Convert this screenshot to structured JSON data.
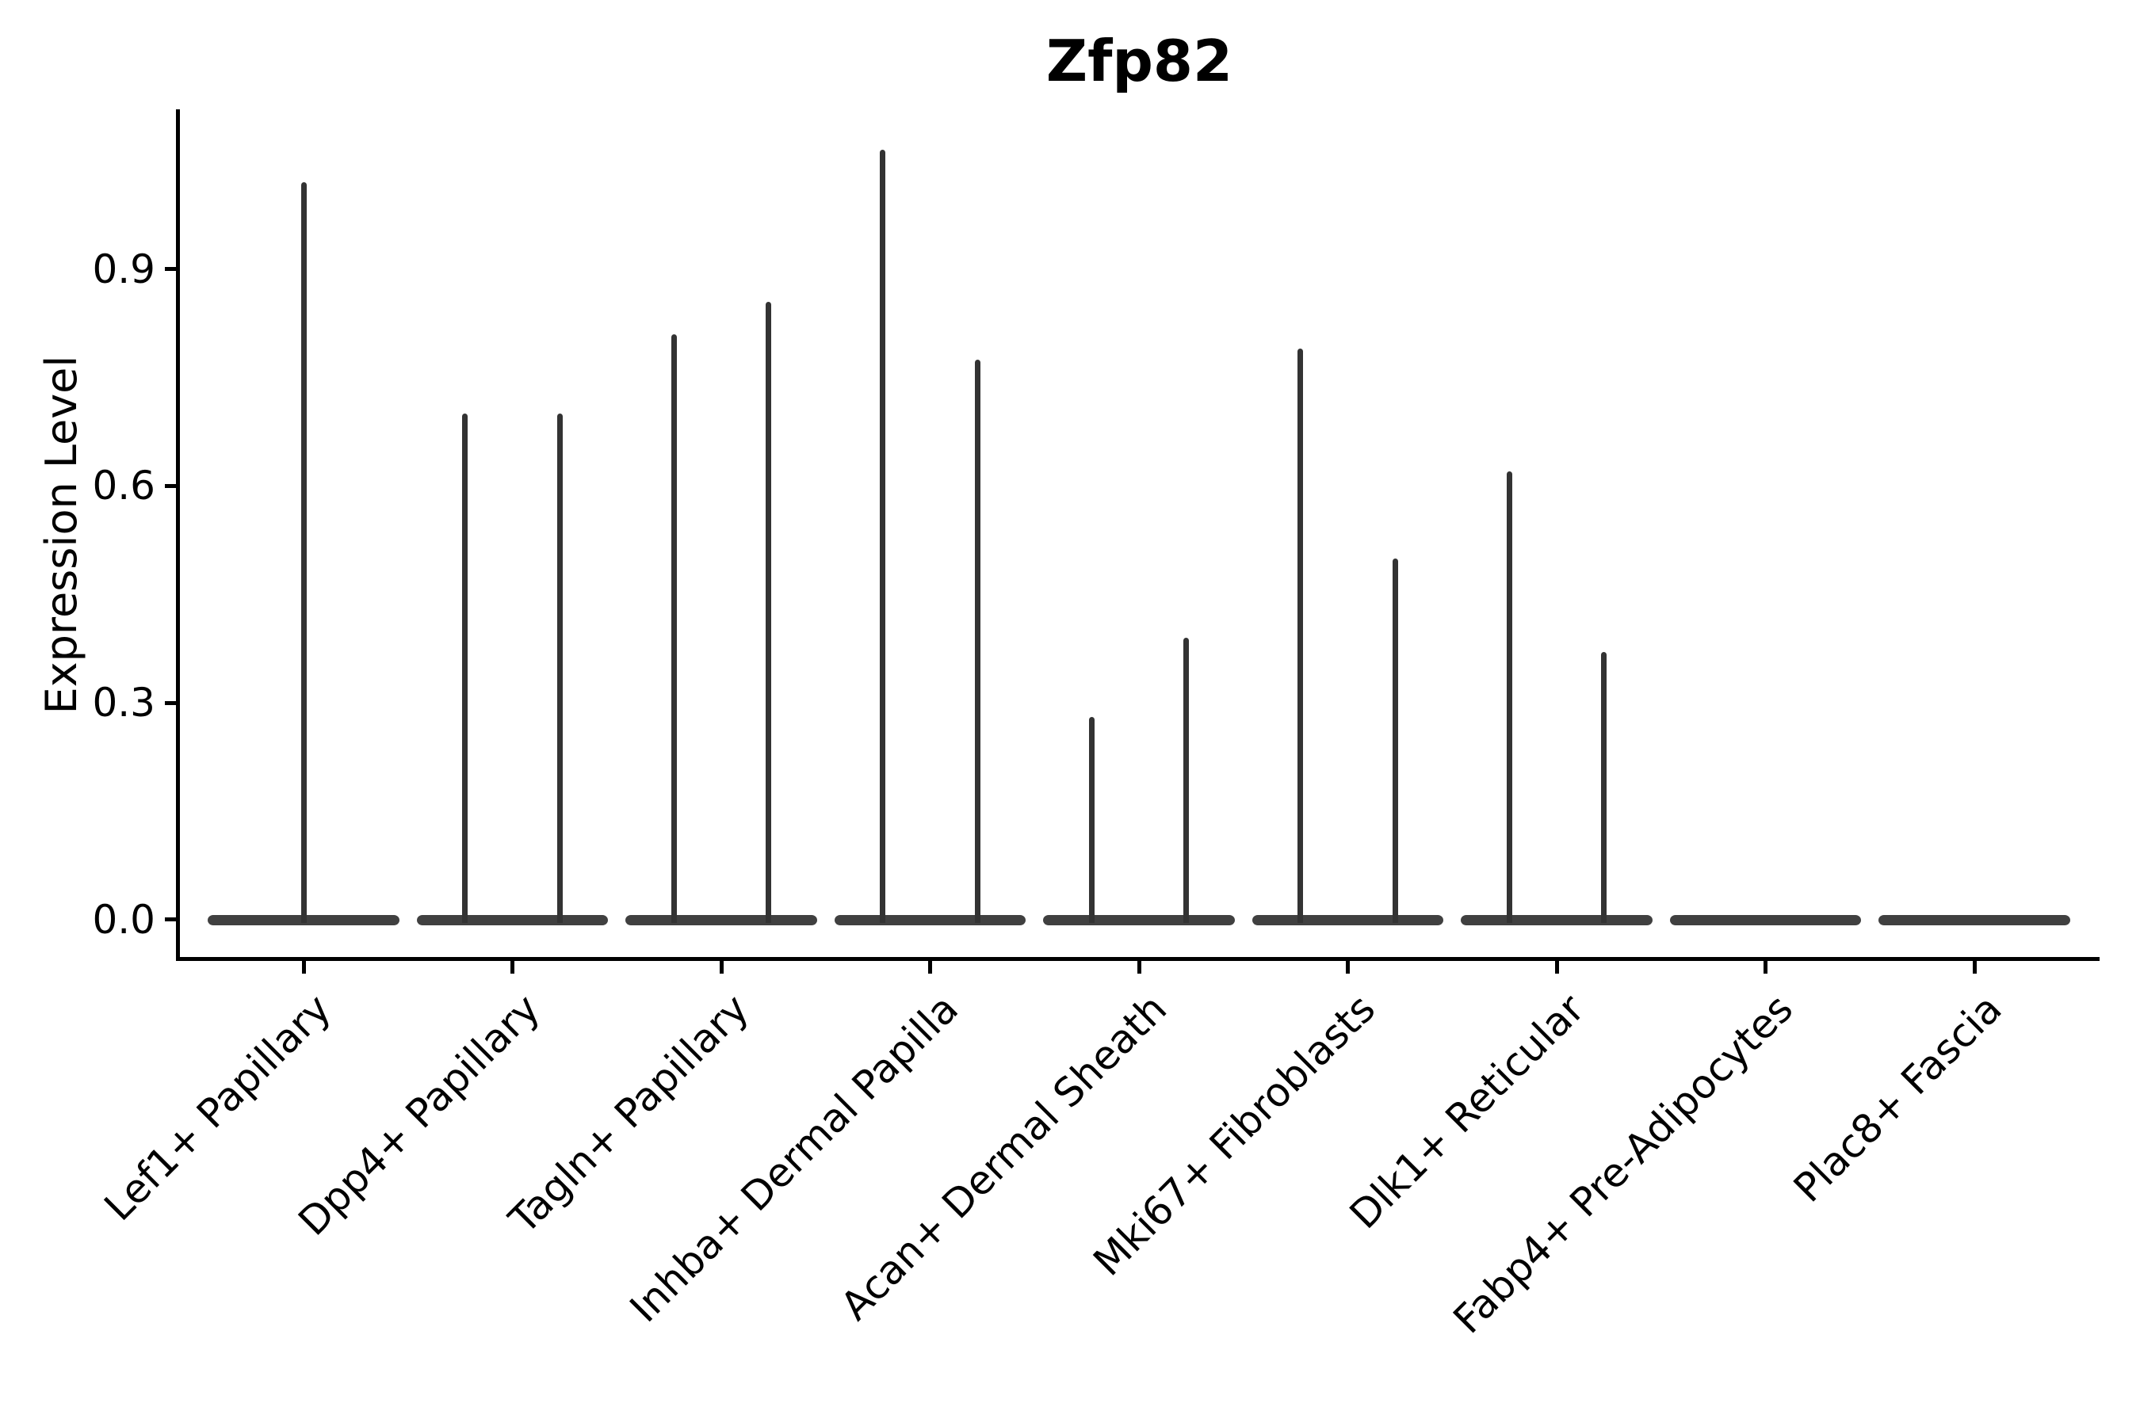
{
  "chart_data": {
    "type": "violin",
    "title": "Zfp82",
    "xlabel": "",
    "ylabel": "Expression Level",
    "yticks": [
      0.0,
      0.3,
      0.6,
      0.9
    ],
    "ytick_labels": [
      "0.0",
      "0.3",
      "0.6",
      "0.9"
    ],
    "ylim": [
      -0.054,
      1.119
    ],
    "grid": false,
    "legend": null,
    "axis_color": "#000000",
    "text_color": "#000000",
    "spike_color": "#333333",
    "base_color": "#404040",
    "background_color": "#ffffff",
    "categories": [
      "Lef1+ Papillary",
      "Dpp4+ Papillary",
      "Tagln+ Papillary",
      "Inhba+ Dermal Papilla",
      "Acan+ Dermal Sheath",
      "Mki67+ Fibroblasts",
      "Dlk1+ Reticular",
      "Fabp4+ Pre-Adipocytes",
      "Plac8+ Fascia"
    ],
    "violins": [
      {
        "category": "Lef1+ Papillary",
        "base_at_zero": true,
        "spikes": [
          {
            "offset": 0,
            "peak": 1.02
          }
        ]
      },
      {
        "category": "Dpp4+ Papillary",
        "base_at_zero": true,
        "spikes": [
          {
            "offset": -0.226,
            "peak": 0.7
          },
          {
            "offset": 0.226,
            "peak": 0.7
          }
        ]
      },
      {
        "category": "Tagln+ Papillary",
        "base_at_zero": true,
        "spikes": [
          {
            "offset": -0.226,
            "peak": 0.81
          },
          {
            "offset": 0.226,
            "peak": 0.855
          }
        ]
      },
      {
        "category": "Inhba+ Dermal Papilla",
        "base_at_zero": true,
        "spikes": [
          {
            "offset": -0.226,
            "peak": 1.065
          },
          {
            "offset": 0.226,
            "peak": 0.775
          }
        ]
      },
      {
        "category": "Acan+ Dermal Sheath",
        "base_at_zero": true,
        "spikes": [
          {
            "offset": -0.226,
            "peak": 0.28
          },
          {
            "offset": 0.226,
            "peak": 0.39
          }
        ]
      },
      {
        "category": "Mki67+ Fibroblasts",
        "base_at_zero": true,
        "spikes": [
          {
            "offset": -0.226,
            "peak": 0.79
          },
          {
            "offset": 0.226,
            "peak": 0.5
          }
        ]
      },
      {
        "category": "Dlk1+ Reticular",
        "base_at_zero": true,
        "spikes": [
          {
            "offset": -0.226,
            "peak": 0.62
          },
          {
            "offset": 0.226,
            "peak": 0.37
          }
        ]
      },
      {
        "category": "Fabp4+ Pre-Adipocytes",
        "base_at_zero": true,
        "spikes": []
      },
      {
        "category": "Plac8+ Fascia",
        "base_at_zero": true,
        "spikes": []
      }
    ],
    "base_halfwidth_frac": 0.459
  }
}
